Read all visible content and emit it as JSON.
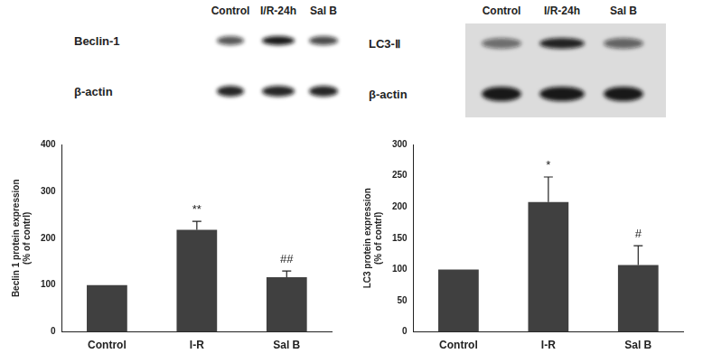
{
  "blots": [
    {
      "lanes": [
        "Control",
        "I/R-24h",
        "Sal B"
      ],
      "rows": [
        "Beclin-1",
        "β-actin"
      ]
    },
    {
      "lanes": [
        "Control",
        "I/R-24h",
        "Sal B"
      ],
      "rows": [
        "LC3-Ⅱ",
        "β-actin"
      ]
    }
  ],
  "chart_data": [
    {
      "type": "bar",
      "categories": [
        "Control",
        "I-R",
        "Sal B"
      ],
      "values": [
        100,
        218,
        117
      ],
      "errors": [
        null,
        18,
        13
      ],
      "annotations": [
        null,
        "**",
        "##"
      ],
      "y_label": [
        "Beclin 1 protein expression",
        "(% of contrl)"
      ],
      "color": "#404040",
      "ylim": [
        0,
        400
      ],
      "yticks": [
        0,
        100,
        200,
        300,
        400
      ],
      "grid": false
    },
    {
      "type": "bar",
      "categories": [
        "Control",
        "I-R",
        "Sal B"
      ],
      "values": [
        100,
        208,
        107
      ],
      "errors": [
        null,
        40,
        31
      ],
      "annotations": [
        null,
        "*",
        "#"
      ],
      "y_label": [
        "LC3 protein expression",
        "(% of contrl)"
      ],
      "color": "#404040",
      "ylim": [
        0,
        300
      ],
      "yticks": [
        0,
        50,
        100,
        150,
        200,
        250,
        300
      ],
      "grid": false
    }
  ]
}
